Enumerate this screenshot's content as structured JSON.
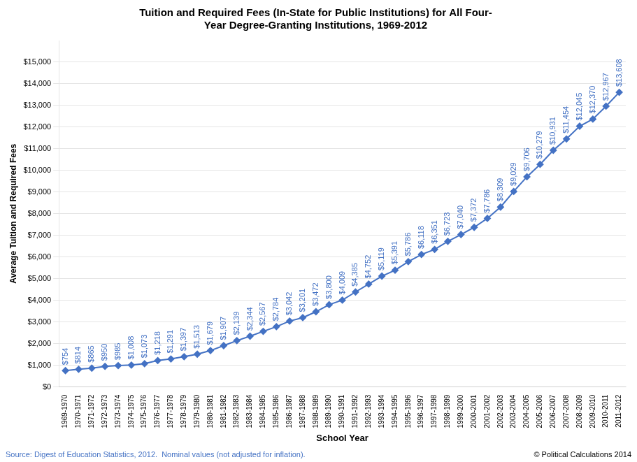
{
  "chart_data": {
    "type": "line",
    "title": "Tuition and Required Fees (In-State for Public Institutions) for All Four-\nYear Degree-Granting Institutions, 1969-2012",
    "xlabel": "School Year",
    "ylabel": "Average Tuition and Required Fees",
    "categories": [
      "1969-1970",
      "1970-1971",
      "1971-1972",
      "1972-1973",
      "1973-1974",
      "1974-1975",
      "1975-1976",
      "1976-1977",
      "1977-1978",
      "1978-1979",
      "1979-1980",
      "1980-1981",
      "1981-1982",
      "1982-1983",
      "1983-1984",
      "1984-1985",
      "1985-1986",
      "1986-1987",
      "1987-1988",
      "1988-1989",
      "1989-1990",
      "1990-1991",
      "1991-1992",
      "1992-1993",
      "1993-1994",
      "1994-1995",
      "1995-1996",
      "1996-1997",
      "1997-1998",
      "1998-1999",
      "1999-2000",
      "2000-2001",
      "2001-2002",
      "2002-2003",
      "2003-2004",
      "2004-2005",
      "2005-2006",
      "2006-2007",
      "2007-2008",
      "2008-2009",
      "2009-2010",
      "2010-2011",
      "2011-2012"
    ],
    "values": [
      754,
      814,
      865,
      950,
      985,
      1008,
      1073,
      1218,
      1291,
      1397,
      1513,
      1679,
      1907,
      2139,
      2344,
      2567,
      2784,
      3042,
      3201,
      3472,
      3800,
      4009,
      4385,
      4752,
      5119,
      5391,
      5786,
      6118,
      6351,
      6723,
      7040,
      7372,
      7786,
      8309,
      9029,
      9706,
      10279,
      10931,
      11454,
      12045,
      12370,
      12967,
      13608
    ],
    "value_labels": [
      "$754",
      "$814",
      "$865",
      "$950",
      "$985",
      "$1,008",
      "$1,073",
      "$1,218",
      "$1,291",
      "$1,397",
      "$1,513",
      "$1,679",
      "$1,907",
      "$2,139",
      "$2,344",
      "$2,567",
      "$2,784",
      "$3,042",
      "$3,201",
      "$3,472",
      "$3,800",
      "$4,009",
      "$4,385",
      "$4,752",
      "$5,119",
      "$5,391",
      "$5,786",
      "$6,118",
      "$6,351",
      "$6,723",
      "$7,040",
      "$7,372",
      "$7,786",
      "$8,309",
      "$9,029",
      "$9,706",
      "$10,279",
      "$10,931",
      "$11,454",
      "$12,045",
      "$12,370",
      "$12,967",
      "$13,608"
    ],
    "data_labels": true,
    "color": "#4472C4",
    "marker": "diamond",
    "grid": true,
    "ylim": [
      0,
      16000
    ],
    "yticks": [
      {
        "value": 0,
        "label": "$0"
      },
      {
        "value": 1000,
        "label": "$1,000"
      },
      {
        "value": 2000,
        "label": "$2,000"
      },
      {
        "value": 3000,
        "label": "$3,000"
      },
      {
        "value": 4000,
        "label": "$4,000"
      },
      {
        "value": 5000,
        "label": "$5,000"
      },
      {
        "value": 6000,
        "label": "$6,000"
      },
      {
        "value": 7000,
        "label": "$7,000"
      },
      {
        "value": 8000,
        "label": "$8,000"
      },
      {
        "value": 9000,
        "label": "$9,000"
      },
      {
        "value": 10000,
        "label": "$10,000"
      },
      {
        "value": 11000,
        "label": "$11,000"
      },
      {
        "value": 12000,
        "label": "$12,000"
      },
      {
        "value": 13000,
        "label": "$13,000"
      },
      {
        "value": 14000,
        "label": "$14,000"
      },
      {
        "value": 15000,
        "label": "$15,000"
      }
    ],
    "annotations": [
      {
        "text": "Source: Digest of Education Statistics, 2012.  Nominal values (not adjusted for inflation).",
        "color": "#4472C4"
      },
      {
        "text": "© Political Calculations 2014",
        "color": "#000000"
      }
    ]
  }
}
